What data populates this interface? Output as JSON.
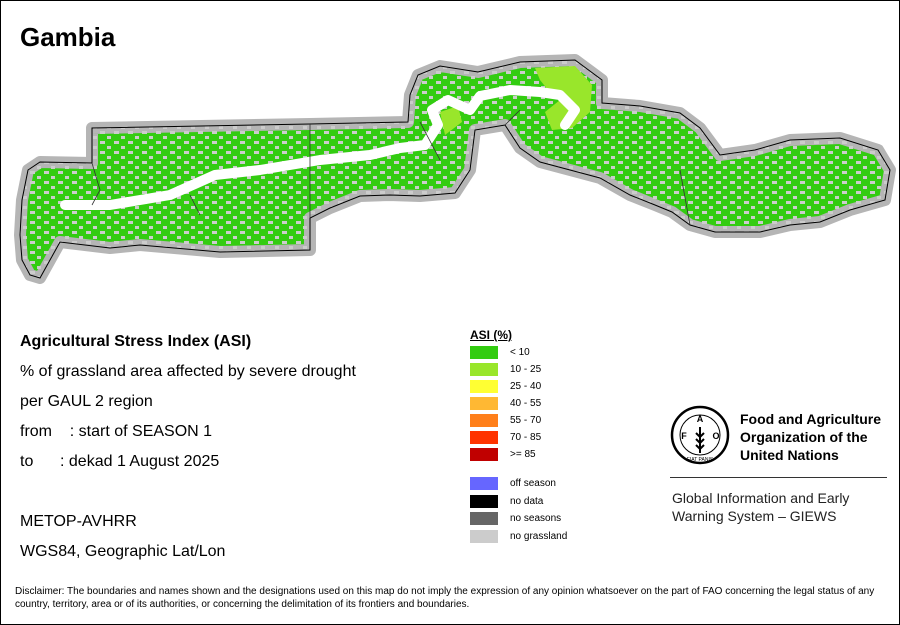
{
  "header": {
    "title": "Gambia"
  },
  "info": {
    "index_title": "Agricultural Stress Index (ASI)",
    "subtitle_1": "% of grassland area affected by severe drought",
    "subtitle_2": "per GAUL 2 region",
    "from": "from    : start of SEASON 1",
    "to": "to      : dekad 1 August 2025",
    "sensor": "METOP-AVHRR",
    "projection": "WGS84, Geographic Lat/Lon"
  },
  "legend": {
    "title": "ASI (%)",
    "classes": [
      {
        "label": "< 10",
        "color": "#33cc11"
      },
      {
        "label": "10 - 25",
        "color": "#99e62b"
      },
      {
        "label": "25 - 40",
        "color": "#ffff33"
      },
      {
        "label": "40 - 55",
        "color": "#ffb833"
      },
      {
        "label": "55 - 70",
        "color": "#ff7f1a"
      },
      {
        "label": "70 - 85",
        "color": "#ff3300"
      },
      {
        "label": ">= 85",
        "color": "#c00000"
      }
    ],
    "other": [
      {
        "label": "off season",
        "color": "#6666ff"
      },
      {
        "label": "no data",
        "color": "#000000"
      },
      {
        "label": "no seasons",
        "color": "#666666"
      },
      {
        "label": "no grassland",
        "color": "#cccccc"
      }
    ]
  },
  "organization": {
    "logo_text": "FAO",
    "logo_motto": "FIAT PANIS",
    "name_line1": "Food and Agriculture",
    "name_line2": "Organization of the",
    "name_line3": "United Nations",
    "program_line1": "Global Information and Early",
    "program_line2": "Warning System – GIEWS"
  },
  "disclaimer": "Disclaimer: The boundaries and names shown and the designations used on this map do not imply the expression of any opinion whatsoever on the part of FAO concerning the legal status of any country, territory, area or of its authorities, or concerning the delimitation of its frontiers and boundaries."
}
